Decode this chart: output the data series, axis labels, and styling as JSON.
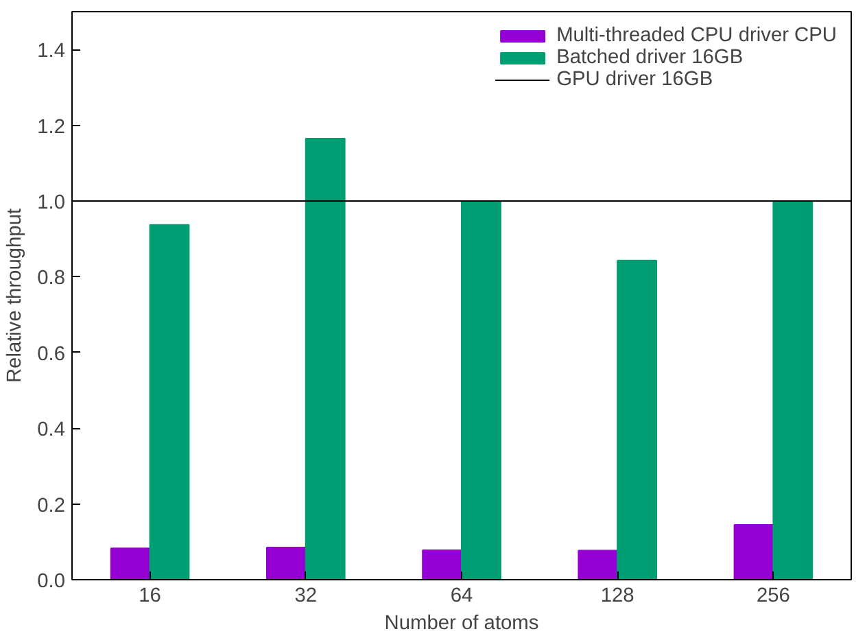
{
  "chart_data": {
    "type": "bar",
    "xlabel": "Number of atoms",
    "ylabel": "Relative throughput",
    "categories": [
      "16",
      "32",
      "64",
      "128",
      "256"
    ],
    "series": [
      {
        "name": "Multi-threaded CPU driver CPU",
        "color": "#9400d3",
        "values": [
          0.083,
          0.085,
          0.078,
          0.077,
          0.145
        ]
      },
      {
        "name": "Batched driver 16GB",
        "color": "#009e73",
        "values": [
          0.937,
          1.165,
          1.0,
          0.843,
          1.0
        ]
      }
    ],
    "ref_lines": [
      {
        "axis": "y",
        "value": 1.0,
        "label": "GPU driver 16GB",
        "color": "#000000",
        "line_style": "solid"
      }
    ],
    "ylim": [
      0,
      1.5
    ],
    "yticks": [
      {
        "value": 0,
        "label": "0.0"
      },
      0.2,
      0.4,
      0.6,
      0.8,
      {
        "value": 1,
        "label": "1.0"
      },
      1.2,
      1.4
    ],
    "grid": false,
    "legend": "top right"
  }
}
